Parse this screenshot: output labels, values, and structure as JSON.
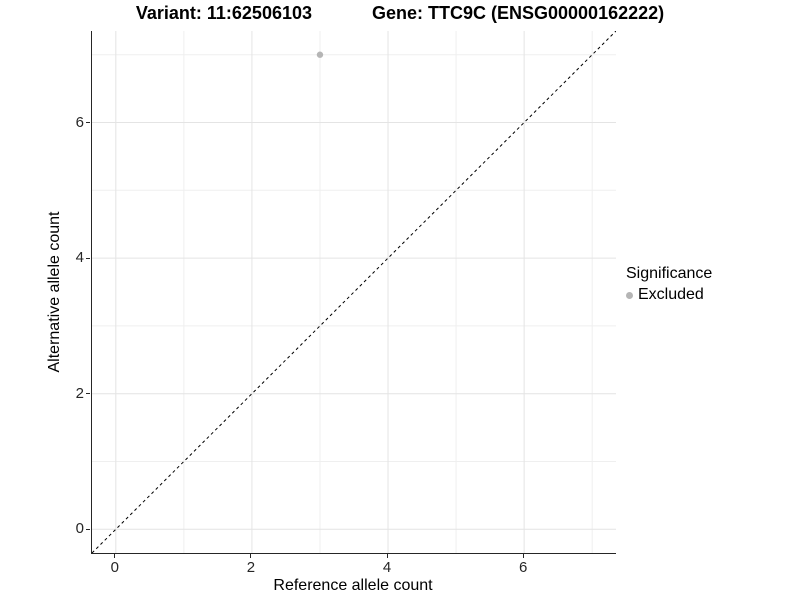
{
  "colors": {
    "background": "#ffffff",
    "grid_major": "#e4e4e4",
    "grid_minor": "#efefef",
    "axis_line": "#262626",
    "tick_label": "#262626",
    "point_excluded": "#b5b5b5",
    "identity_line": "#000000"
  },
  "chart_data": {
    "type": "scatter",
    "title_left": "Variant: 11:62506103",
    "title_right": "Gene: TTC9C (ENSG00000162222)",
    "xlabel": "Reference allele count",
    "ylabel": "Alternative allele count",
    "xlim": [
      -0.35,
      7.35
    ],
    "ylim": [
      -0.35,
      7.35
    ],
    "x_ticks": [
      0,
      2,
      4,
      6
    ],
    "y_ticks": [
      0,
      2,
      4,
      6
    ],
    "x_minor_ticks": [
      1,
      3,
      5,
      7
    ],
    "y_minor_ticks": [
      1,
      3,
      5,
      7
    ],
    "grid": true,
    "legend": {
      "title": "Significance",
      "position": "right",
      "items": [
        {
          "label": "Excluded",
          "color": "#b5b5b5"
        }
      ]
    },
    "series": [
      {
        "name": "Excluded",
        "color": "#b5b5b5",
        "points": [
          [
            3,
            7
          ]
        ]
      }
    ],
    "identity_line": {
      "style": "dashed",
      "color": "#000000",
      "from": -0.35,
      "to": 7.35
    }
  }
}
